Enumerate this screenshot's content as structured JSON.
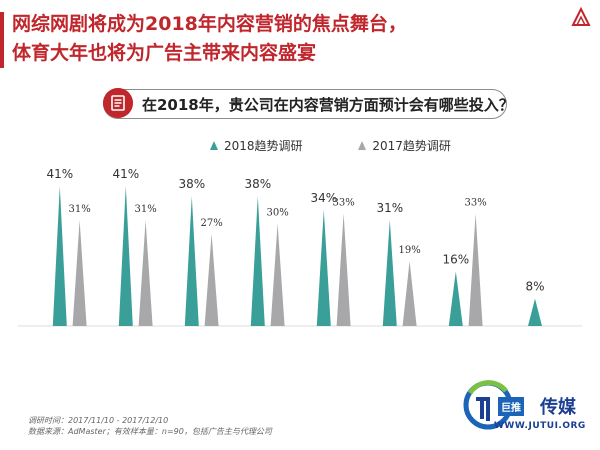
{
  "header": {
    "title_line1": "网综网剧将成为2018年内容营销的焦点舞台，",
    "title_line2": "体育大年也将为广告主带来内容盛宴",
    "question": "在2018年，贵公司在内容营销方面预计会有哪些投入？"
  },
  "colors": {
    "accent": "#c0272d",
    "series_2018": "#3a9f98",
    "series_2017": "#a8a8ab",
    "brand": "#1b3f93"
  },
  "chart_data": {
    "type": "bar",
    "categories": [
      "",
      "",
      "",
      "",
      "",
      "",
      "",
      ""
    ],
    "series": [
      {
        "name": "2018趋势调研",
        "values": [
          41,
          41,
          38,
          38,
          34,
          31,
          16,
          8
        ],
        "labels": [
          "41%",
          "41%",
          "38%",
          "38%",
          "34%",
          "31%",
          "16%",
          "8%"
        ]
      },
      {
        "name": "2017趋势调研",
        "values": [
          31,
          31,
          27,
          30,
          33,
          19,
          33,
          null
        ],
        "labels": [
          "31%",
          "31%",
          "27%",
          "30%",
          "33%",
          "19%",
          "33%",
          ""
        ]
      }
    ],
    "ylim": [
      0,
      50
    ],
    "grid": false,
    "legend_position": "top-center"
  },
  "footnote": {
    "line1": "调研时间：2017/11/10 - 2017/12/10",
    "line2": "数据来源：AdMaster；有效样本量：n=90，包括广告主与代理公司"
  },
  "brand": {
    "badge": "巨推",
    "name": "传媒",
    "url": "WWW.JUTUI.ORG"
  }
}
